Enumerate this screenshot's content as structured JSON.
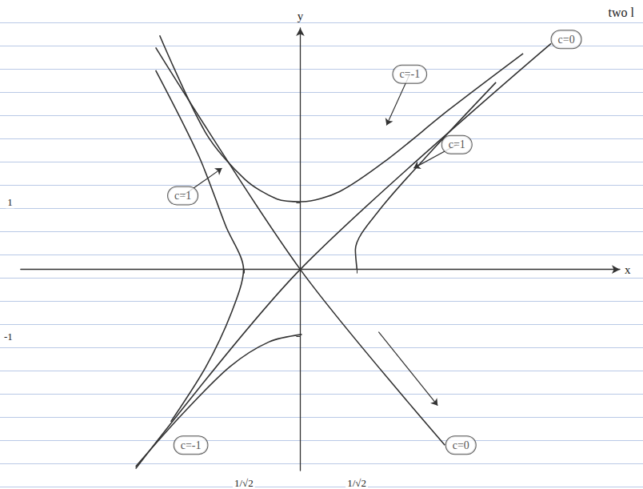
{
  "chart_data": {
    "type": "line",
    "title": "two l",
    "x_label": "x",
    "y_label": "y",
    "xlim": [
      -3.5,
      4.0
    ],
    "ylim": [
      -3.0,
      3.6
    ],
    "xticks": [
      {
        "value": -0.707,
        "label": "1/√2"
      },
      {
        "value": 0.707,
        "label": "1/√2"
      }
    ],
    "yticks": [
      -1,
      1
    ],
    "grid": false,
    "color": "#333333",
    "series": [
      {
        "x": [
          -2.06,
          0,
          3.14
        ],
        "values": [
          -2.97,
          0,
          3.37
        ]
      },
      {
        "x": [
          -1.81,
          0,
          1.81
        ],
        "values": [
          3.31,
          0,
          -2.62
        ]
      },
      {
        "x": [
          -1.76,
          -1.18,
          -0.69,
          -0.29,
          0.02,
          0.49,
          1.08,
          1.86,
          2.79
        ],
        "values": [
          3.49,
          2.03,
          1.34,
          1.05,
          1.01,
          1.16,
          1.63,
          2.38,
          3.22
        ]
      },
      {
        "x": [
          -2.06,
          -1.47,
          -0.88,
          -0.39,
          0.02
        ],
        "values": [
          -2.94,
          -2.15,
          -1.45,
          -1.08,
          -0.97
        ]
      },
      {
        "x": [
          -1.81,
          -1.27,
          -0.93,
          -0.71,
          -0.86,
          -1.18,
          -1.62
        ],
        "values": [
          2.97,
          1.69,
          0.64,
          0,
          -0.64,
          -1.45,
          -2.27
        ]
      },
      {
        "x": [
          0.71,
          0.69,
          0.98,
          1.67,
          2.45
        ],
        "values": [
          0,
          0.29,
          0.87,
          1.8,
          2.79
        ]
      }
    ],
    "annotations": [
      {
        "text": "c=0",
        "x": 3.33,
        "y": 3.43
      },
      {
        "text": "c=-1",
        "x": 1.37,
        "y": 2.91,
        "target": [
          1.08,
          2.15
        ]
      },
      {
        "text": "c=1",
        "x": 1.96,
        "y": 1.86,
        "target": [
          1.42,
          1.51
        ]
      },
      {
        "text": "c=1",
        "x": -1.47,
        "y": 1.1,
        "target": [
          -0.98,
          1.51
        ]
      },
      {
        "text": "c=-1",
        "x": -1.37,
        "y": -2.62
      },
      {
        "text": "c=0",
        "x": 2.01,
        "y": -2.62,
        "arrow": [
          [
            0.98,
            -0.93
          ],
          [
            1.72,
            -2.03
          ]
        ]
      }
    ]
  }
}
